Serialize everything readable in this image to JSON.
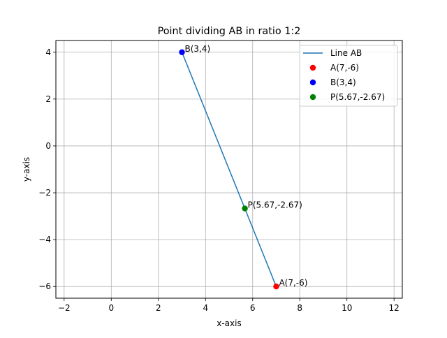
{
  "chart_data": {
    "type": "scatter",
    "title": "Point dividing AB in ratio 1:2",
    "xlabel": "x-axis",
    "ylabel": "y-axis",
    "xlim": [
      -2.35,
      12.35
    ],
    "ylim": [
      -6.5,
      4.5
    ],
    "xticks": [
      -2,
      0,
      2,
      4,
      6,
      8,
      10,
      12
    ],
    "yticks": [
      -6,
      -4,
      -2,
      0,
      2,
      4
    ],
    "xtick_labels": [
      "−2",
      "0",
      "2",
      "4",
      "6",
      "8",
      "10",
      "12"
    ],
    "ytick_labels": [
      "−6",
      "−4",
      "−2",
      "0",
      "2",
      "4"
    ],
    "grid": true,
    "legend_position": "top-right",
    "series": [
      {
        "name": "Line AB",
        "kind": "line",
        "color": "#1f77b4",
        "x": [
          7,
          3
        ],
        "y": [
          -6,
          4
        ]
      },
      {
        "name": "A(7,-6)",
        "kind": "point",
        "color": "#ff0000",
        "x": [
          7
        ],
        "y": [
          -6
        ],
        "annotation": "A(7,-6)"
      },
      {
        "name": "B(3,4)",
        "kind": "point",
        "color": "#0000ff",
        "x": [
          3
        ],
        "y": [
          4
        ],
        "annotation": "B(3,4)"
      },
      {
        "name": "P(5.67,-2.67)",
        "kind": "point",
        "color": "#008000",
        "x": [
          5.67
        ],
        "y": [
          -2.67
        ],
        "annotation": "P(5.67,-2.67)"
      }
    ]
  }
}
